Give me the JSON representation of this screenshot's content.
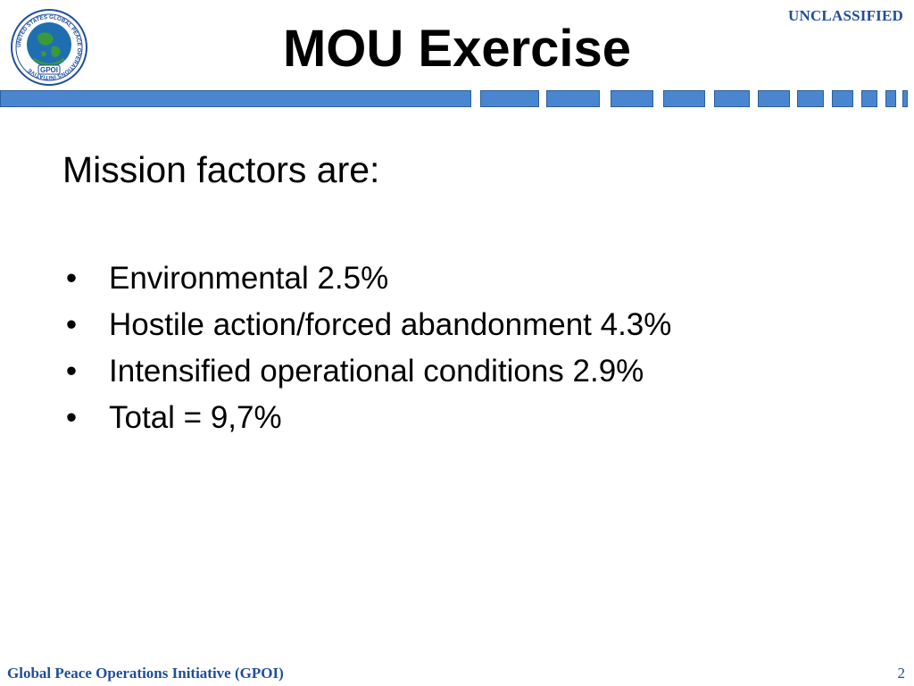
{
  "header": {
    "logo": {
      "icon": "gpoi-seal-icon",
      "ring_text": "UNITED STATES GLOBAL PEACE OPERATIONS INITIATIVE",
      "center_text": "GPOI",
      "ring_color": "#1f4e9c",
      "globe_color": "#1f6fb0",
      "land_color": "#3a9a3a"
    },
    "classification": "UNCLASSIFIED",
    "title": "MOU Exercise"
  },
  "content": {
    "heading": "Mission factors are:",
    "bullet_glyph": "•",
    "bullets": [
      "Environmental 2.5%",
      "Hostile action/forced abandonment 4.3%",
      "Intensified operational conditions 2.9%",
      "Total = 9,7%"
    ]
  },
  "footer": {
    "organization": "Global Peace Operations Initiative (GPOI)",
    "page_number": "2"
  },
  "colors": {
    "accent": "#1f4e9c",
    "rule_fill": "#4a86d0",
    "rule_border": "#2f5f9e"
  }
}
